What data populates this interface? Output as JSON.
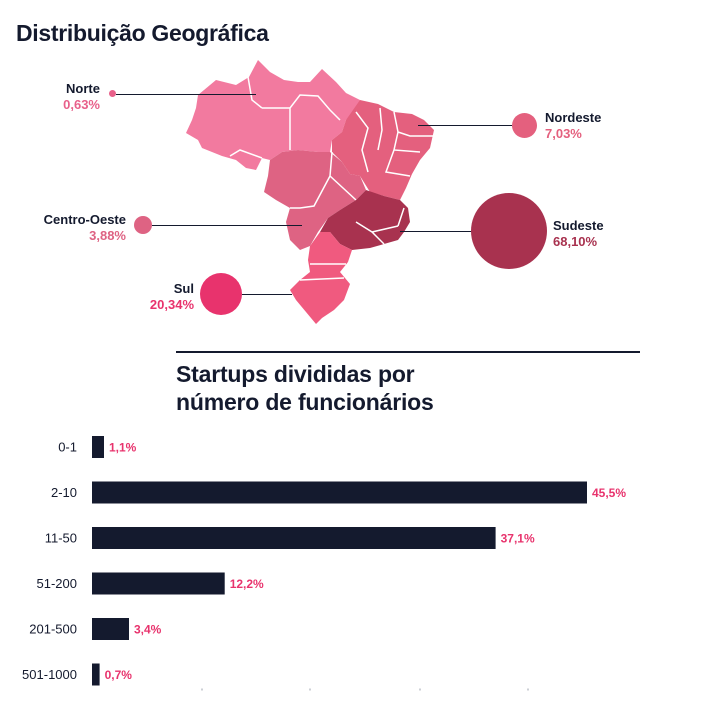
{
  "map": {
    "title": "Distribuição Geográfica",
    "regions": [
      {
        "name": "Norte",
        "pct": "0,63%",
        "value": 0.63,
        "color": "#e8608a"
      },
      {
        "name": "Nordeste",
        "pct": "7,03%",
        "value": 7.03,
        "color": "#e4607e"
      },
      {
        "name": "Centro-Oeste",
        "pct": "3,88%",
        "value": 3.88,
        "color": "#de6383"
      },
      {
        "name": "Sudeste",
        "pct": "68,10%",
        "value": 68.1,
        "color": "#a8324f"
      },
      {
        "name": "Sul",
        "pct": "20,34%",
        "value": 20.34,
        "color": "#e8336d"
      }
    ]
  },
  "chart_data": {
    "type": "bar",
    "orientation": "horizontal",
    "title": "Startups divididas por número de funcionários",
    "title_lines": [
      "Startups divididas por",
      "número de funcionários"
    ],
    "categories": [
      "0-1",
      "2-10",
      "11-50",
      "51-200",
      "201-500",
      "501-1000"
    ],
    "values": [
      1.1,
      45.5,
      37.1,
      12.2,
      3.4,
      0.7
    ],
    "value_labels": [
      "1,1%",
      "45,5%",
      "37,1%",
      "12,2%",
      "3,4%",
      "0,7%"
    ],
    "xlim": [
      0,
      45.5
    ],
    "xlabel": "",
    "ylabel": "",
    "bar_color": "#141a2e",
    "label_color": "#e8336d"
  }
}
